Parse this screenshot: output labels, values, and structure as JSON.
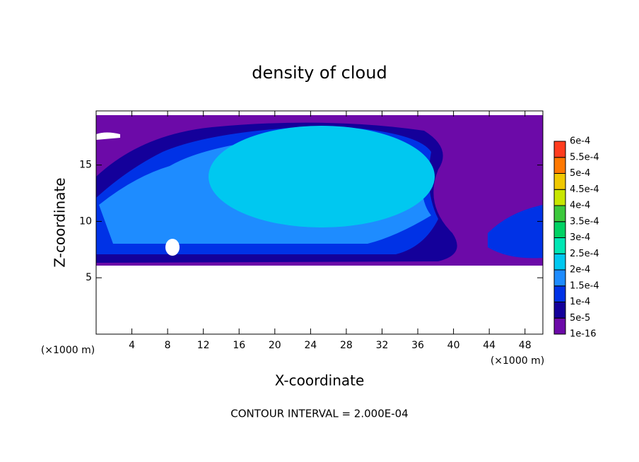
{
  "chart_data": {
    "type": "contour",
    "title": "density of cloud",
    "x_label": "X-coordinate",
    "y_label": "Z-coordinate",
    "x_unit": "(×1000 m)",
    "y_unit": "(×1000 m)",
    "footer": "CONTOUR INTERVAL = 2.000E-04",
    "xlim": [
      0,
      50
    ],
    "ylim": [
      0,
      19.8
    ],
    "xticks": [
      4,
      8,
      12,
      16,
      20,
      24,
      28,
      32,
      36,
      40,
      44,
      48
    ],
    "yticks": [
      5,
      10,
      15
    ],
    "colorbar": {
      "levels": [
        {
          "value": 1e-16,
          "label": "1e-16"
        },
        {
          "value": 5e-05,
          "label": "5e-5"
        },
        {
          "value": 0.0001,
          "label": "1e-4"
        },
        {
          "value": 0.00015,
          "label": "1.5e-4"
        },
        {
          "value": 0.0002,
          "label": "2e-4"
        },
        {
          "value": 0.00025,
          "label": "2.5e-4"
        },
        {
          "value": 0.0003,
          "label": "3e-4"
        },
        {
          "value": 0.00035,
          "label": "3.5e-4"
        },
        {
          "value": 0.0004,
          "label": "4e-4"
        },
        {
          "value": 0.00045,
          "label": "4.5e-4"
        },
        {
          "value": 0.0005,
          "label": "5e-4"
        },
        {
          "value": 0.00055,
          "label": "5.5e-4"
        },
        {
          "value": 0.0006,
          "label": "6e-4"
        }
      ],
      "colors": [
        "#6c0aa8",
        "#14009a",
        "#0032e6",
        "#1e8cff",
        "#00c8f0",
        "#00e6b4",
        "#00d264",
        "#3cc83c",
        "#c8e600",
        "#f0c800",
        "#ff7800",
        "#ff3c1e",
        "#ff8c8c"
      ]
    }
  }
}
